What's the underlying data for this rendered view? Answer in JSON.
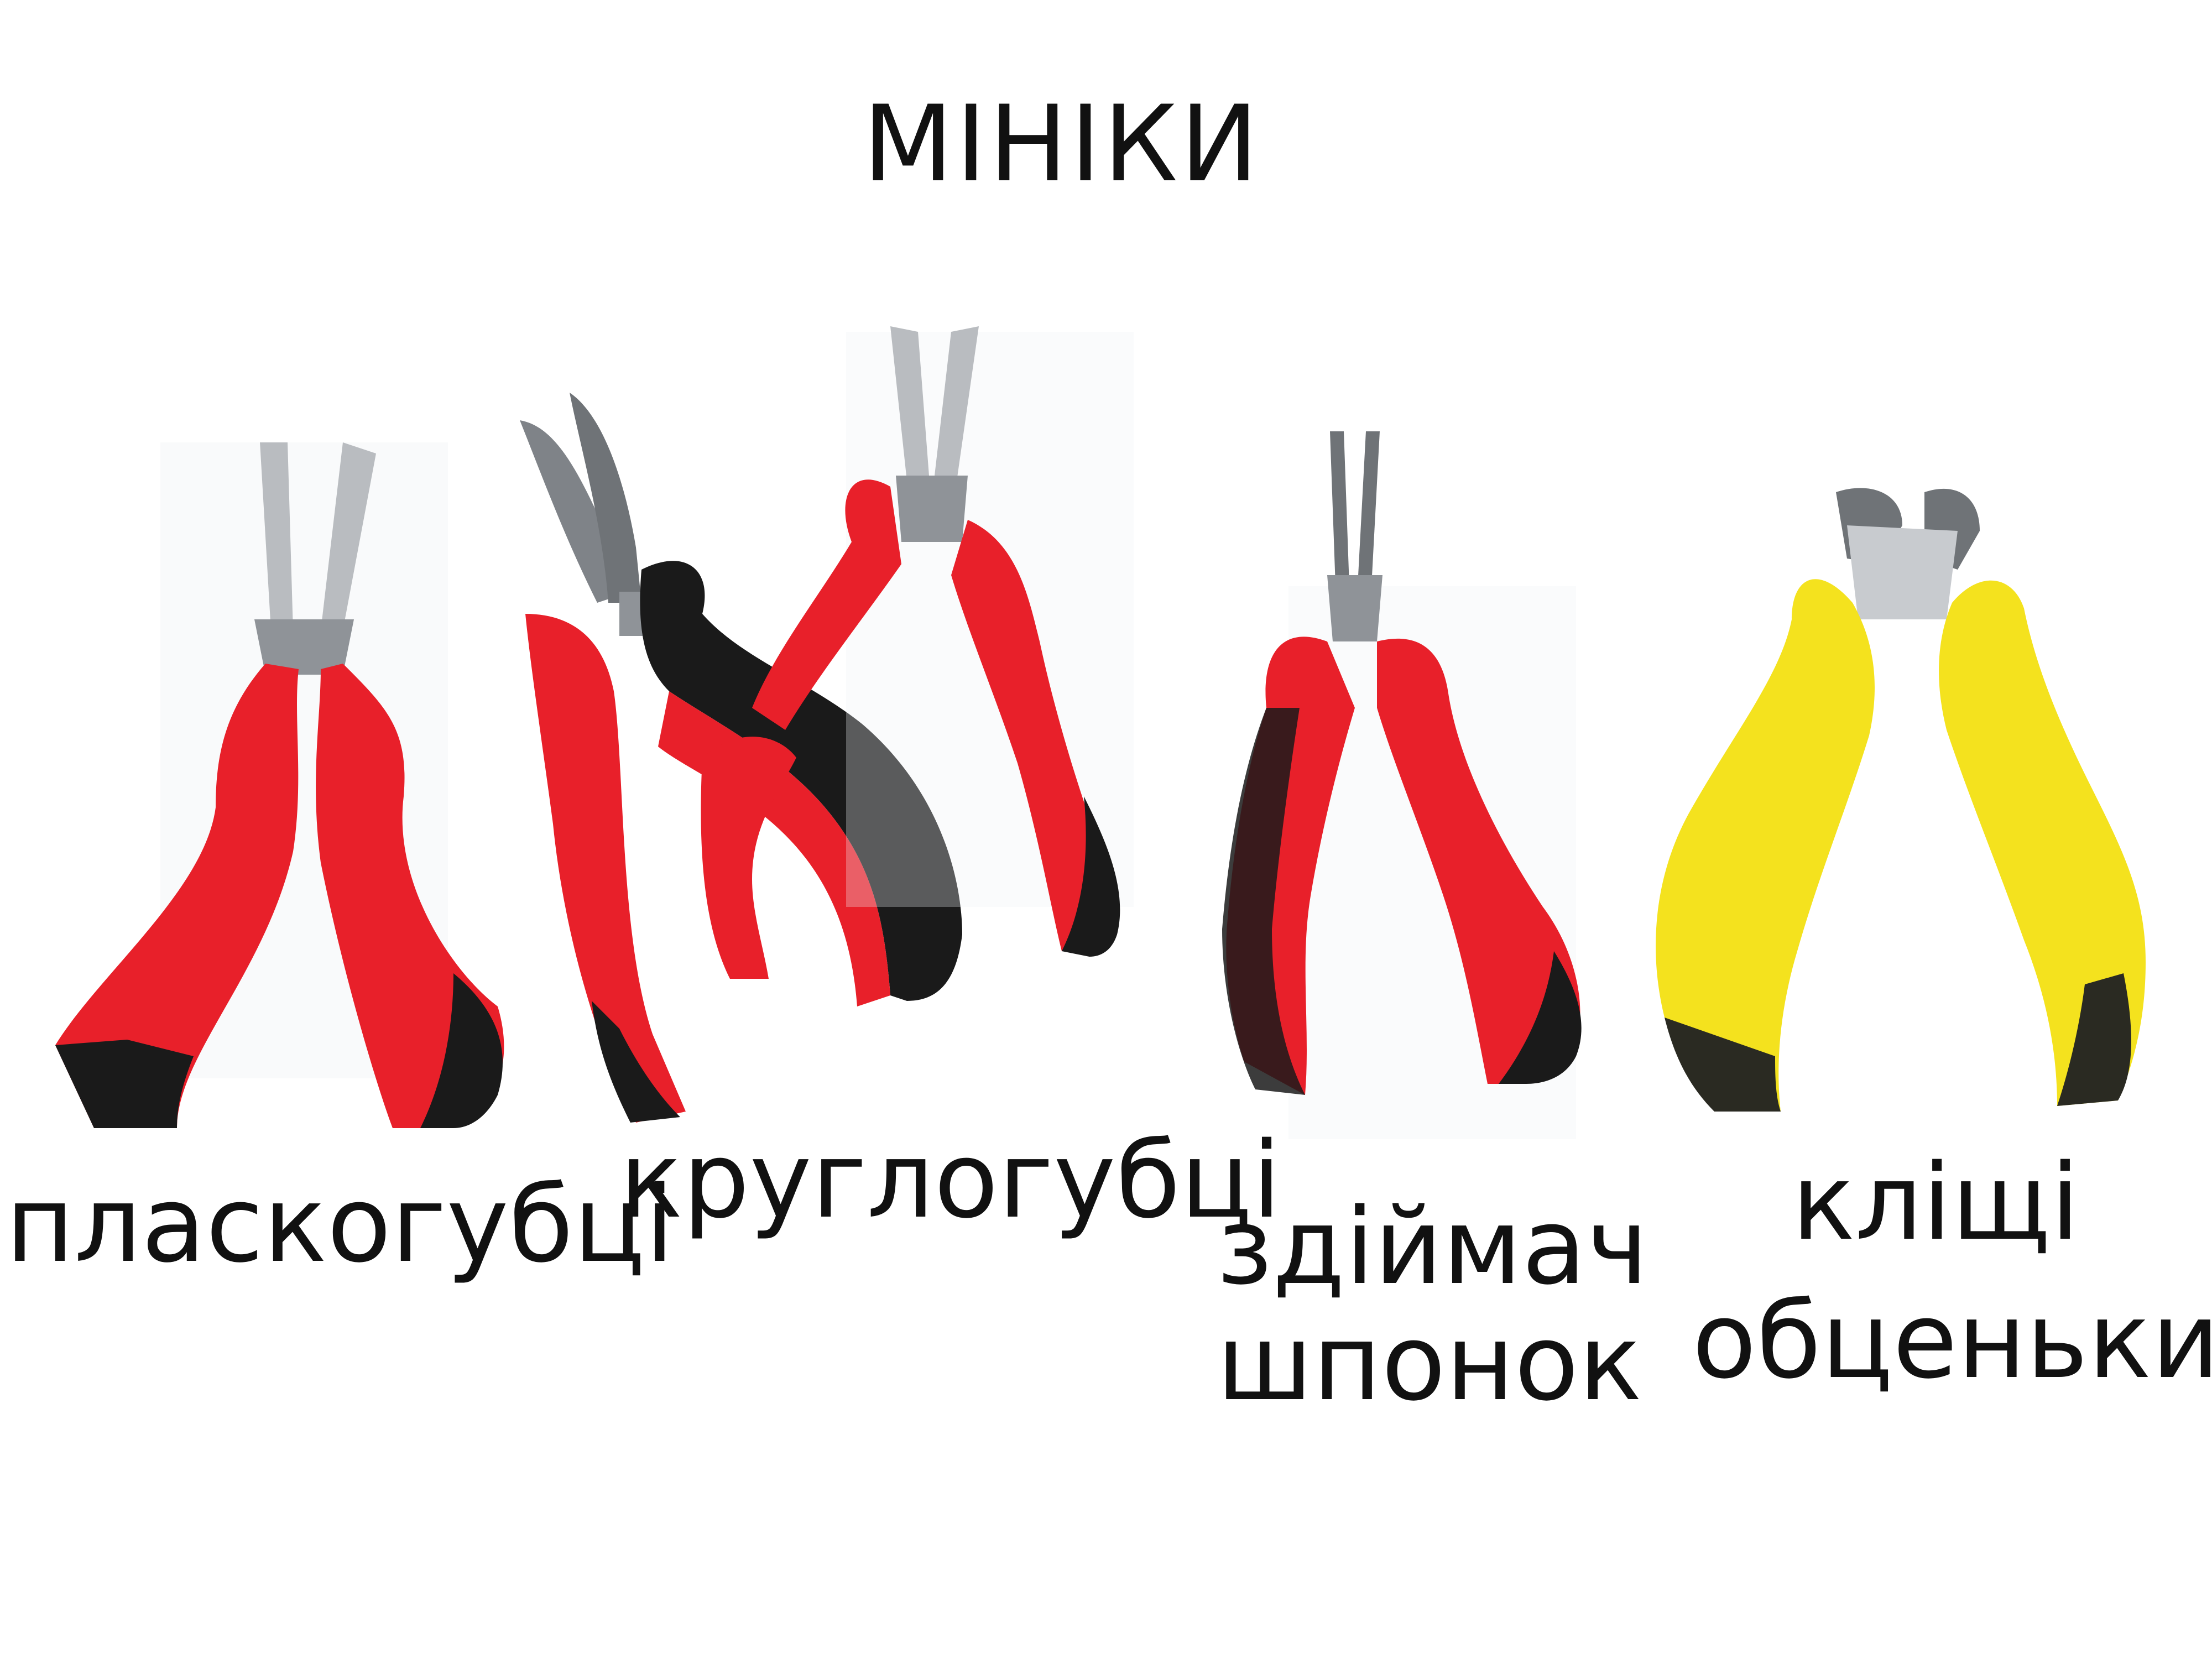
{
  "title": "МІНІКИ",
  "labels": {
    "tool1": "пласкогубці",
    "tool2": "круглогубці",
    "tool3_line1": "здіймач",
    "tool3_line2": "шпонок",
    "tool4_line1": "кліщі",
    "tool4_line2": "обценьки"
  },
  "colors": {
    "handle_red": "#e8202a",
    "handle_black": "#1a1a1a",
    "handle_yellow": "#f4e21e",
    "metal": "#b9bcc0"
  }
}
